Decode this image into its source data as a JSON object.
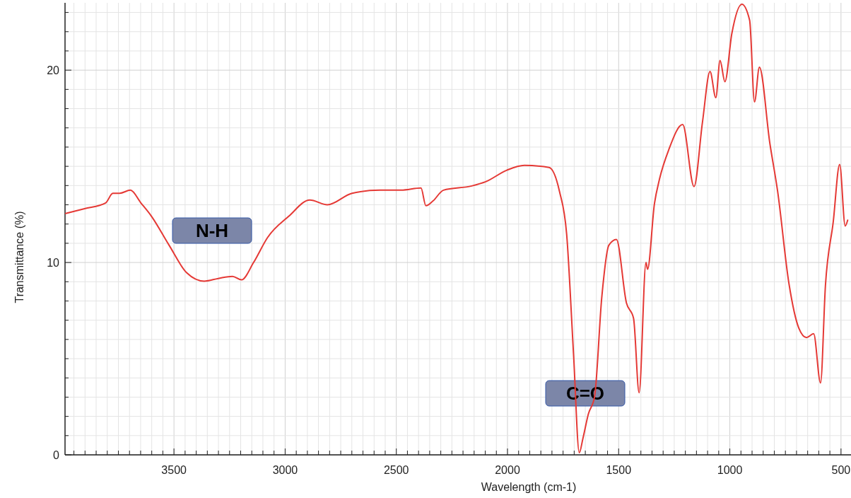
{
  "chart_data": {
    "type": "line",
    "xlabel": "Wavelength (cm-1)",
    "ylabel": "Transmittance (%)",
    "xlim": [
      3990,
      455
    ],
    "ylim": [
      0,
      23.5
    ],
    "xticks": [
      {
        "value": 3950,
        "label": null
      },
      {
        "value": 3900,
        "label": null
      },
      {
        "value": 3850,
        "label": null
      },
      {
        "value": 3800,
        "label": null
      },
      {
        "value": 3750,
        "label": null
      },
      {
        "value": 3700,
        "label": null
      },
      {
        "value": 3650,
        "label": null
      },
      {
        "value": 3600,
        "label": null
      },
      {
        "value": 3550,
        "label": null
      },
      3500,
      {
        "value": 3450,
        "label": null
      },
      {
        "value": 3400,
        "label": null
      },
      {
        "value": 3350,
        "label": null
      },
      {
        "value": 3300,
        "label": null
      },
      {
        "value": 3250,
        "label": null
      },
      {
        "value": 3200,
        "label": null
      },
      {
        "value": 3150,
        "label": null
      },
      {
        "value": 3100,
        "label": null
      },
      {
        "value": 3050,
        "label": null
      },
      3000,
      {
        "value": 2950,
        "label": null
      },
      {
        "value": 2900,
        "label": null
      },
      {
        "value": 2850,
        "label": null
      },
      {
        "value": 2800,
        "label": null
      },
      {
        "value": 2750,
        "label": null
      },
      {
        "value": 2700,
        "label": null
      },
      {
        "value": 2650,
        "label": null
      },
      {
        "value": 2600,
        "label": null
      },
      {
        "value": 2550,
        "label": null
      },
      2500,
      {
        "value": 2450,
        "label": null
      },
      {
        "value": 2400,
        "label": null
      },
      {
        "value": 2350,
        "label": null
      },
      {
        "value": 2300,
        "label": null
      },
      {
        "value": 2250,
        "label": null
      },
      {
        "value": 2200,
        "label": null
      },
      {
        "value": 2150,
        "label": null
      },
      {
        "value": 2100,
        "label": null
      },
      {
        "value": 2050,
        "label": null
      },
      2000,
      {
        "value": 1950,
        "label": null
      },
      {
        "value": 1900,
        "label": null
      },
      {
        "value": 1850,
        "label": null
      },
      {
        "value": 1800,
        "label": null
      },
      {
        "value": 1750,
        "label": null
      },
      {
        "value": 1700,
        "label": null
      },
      {
        "value": 1650,
        "label": null
      },
      {
        "value": 1600,
        "label": null
      },
      {
        "value": 1550,
        "label": null
      },
      1500,
      {
        "value": 1450,
        "label": null
      },
      {
        "value": 1400,
        "label": null
      },
      {
        "value": 1350,
        "label": null
      },
      {
        "value": 1300,
        "label": null
      },
      {
        "value": 1250,
        "label": null
      },
      {
        "value": 1200,
        "label": null
      },
      {
        "value": 1150,
        "label": null
      },
      {
        "value": 1100,
        "label": null
      },
      {
        "value": 1050,
        "label": null
      },
      1000,
      {
        "value": 950,
        "label": null
      },
      {
        "value": 900,
        "label": null
      },
      {
        "value": 850,
        "label": null
      },
      {
        "value": 800,
        "label": null
      },
      {
        "value": 750,
        "label": null
      },
      {
        "value": 700,
        "label": null
      },
      {
        "value": 650,
        "label": null
      },
      {
        "value": 600,
        "label": null
      },
      {
        "value": 550,
        "label": null
      },
      500
    ],
    "yticks": [
      0,
      {
        "value": 1,
        "label": null
      },
      {
        "value": 2,
        "label": null
      },
      {
        "value": 3,
        "label": null
      },
      {
        "value": 4,
        "label": null
      },
      {
        "value": 5,
        "label": null
      },
      {
        "value": 6,
        "label": null
      },
      {
        "value": 7,
        "label": null
      },
      {
        "value": 8,
        "label": null
      },
      {
        "value": 9,
        "label": null
      },
      10,
      {
        "value": 11,
        "label": null
      },
      {
        "value": 12,
        "label": null
      },
      {
        "value": 13,
        "label": null
      },
      {
        "value": 14,
        "label": null
      },
      {
        "value": 15,
        "label": null
      },
      {
        "value": 16,
        "label": null
      },
      {
        "value": 17,
        "label": null
      },
      {
        "value": 18,
        "label": null
      },
      {
        "value": 19,
        "label": null
      },
      20,
      {
        "value": 21,
        "label": null
      },
      {
        "value": 22,
        "label": null
      },
      {
        "value": 23,
        "label": null
      }
    ],
    "grid": true,
    "marker": "none",
    "line_style": "solid",
    "x": [
      3987,
      3902,
      3807,
      3775,
      3744,
      3696,
      3649,
      3601,
      3522,
      3443,
      3364,
      3301,
      3237,
      3196,
      3142,
      3079,
      2984,
      2889,
      2810,
      2699,
      2573,
      2478,
      2389,
      2367,
      2335,
      2288,
      2161,
      2098,
      2003,
      1924,
      1813,
      1766,
      1734,
      1703,
      1677,
      1661,
      1636,
      1608,
      1576,
      1544,
      1510,
      1465,
      1433,
      1408,
      1377,
      1370,
      1339,
      1316,
      1275,
      1212,
      1161,
      1123,
      1089,
      1063,
      1044,
      1022,
      991,
      946,
      911,
      889,
      867,
      820,
      785,
      734,
      690,
      655,
      623,
      592,
      570,
      535,
      506,
      481,
      470
    ],
    "series": [
      {
        "color": "#e53935",
        "values": [
          12.55,
          12.8,
          13.1,
          13.6,
          13.6,
          13.76,
          13.1,
          12.4,
          10.9,
          9.47,
          9.03,
          9.17,
          9.28,
          9.1,
          10.0,
          11.3,
          12.4,
          13.25,
          13.0,
          13.6,
          13.76,
          13.76,
          13.87,
          12.95,
          13.2,
          13.76,
          13.98,
          14.2,
          14.8,
          15.05,
          14.94,
          13.69,
          11.49,
          5.25,
          0.11,
          0.84,
          2.13,
          3.05,
          8.18,
          10.9,
          11.2,
          7.9,
          7.1,
          3.23,
          10.0,
          9.65,
          13.06,
          14.35,
          15.85,
          17.17,
          13.95,
          17.3,
          19.93,
          18.57,
          20.5,
          19.4,
          21.9,
          23.43,
          22.6,
          18.35,
          20.15,
          16.2,
          13.7,
          8.9,
          6.6,
          6.1,
          6.3,
          3.74,
          8.8,
          12.1,
          15.1,
          11.9,
          12.2
        ]
      }
    ],
    "annotations": [
      "N-H",
      "C=O"
    ]
  }
}
